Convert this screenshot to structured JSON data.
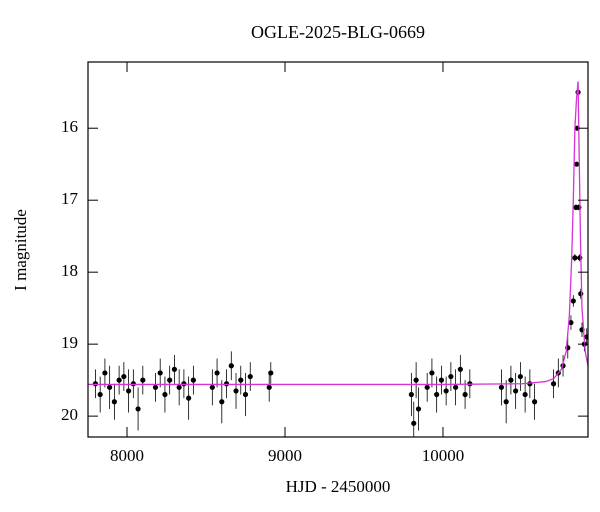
{
  "chart_data": {
    "type": "scatter",
    "title": "OGLE-2025-BLG-0669",
    "x_label": "HJD - 2450000",
    "y_label": "I magnitude",
    "xlim": [
      7753,
      10918
    ],
    "ylim": [
      20.29,
      15.08
    ],
    "xticks": [
      8000,
      9000,
      10000
    ],
    "yticks": [
      16,
      17,
      18,
      19,
      20
    ],
    "points": {
      "color": "#000000",
      "x": [
        7800,
        7830,
        7860,
        7890,
        7920,
        7950,
        7980,
        8010,
        8040,
        8070,
        8100,
        8180,
        8210,
        8240,
        8270,
        8300,
        8330,
        8360,
        8390,
        8420,
        8540,
        8570,
        8600,
        8630,
        8660,
        8690,
        8720,
        8750,
        8780,
        8900,
        8910,
        9800,
        9815,
        9830,
        9845,
        9900,
        9930,
        9960,
        9990,
        10020,
        10050,
        10080,
        10110,
        10140,
        10170,
        10370,
        10400,
        10430,
        10460,
        10490,
        10520,
        10550,
        10580,
        10700,
        10730,
        10760,
        10790,
        10810,
        10825,
        10835,
        10842,
        10846,
        10850,
        10855,
        10860,
        10866,
        10872,
        10880,
        10895,
        10910
      ],
      "values": [
        19.55,
        19.7,
        19.4,
        19.6,
        19.8,
        19.5,
        19.45,
        19.65,
        19.55,
        19.9,
        19.5,
        19.6,
        19.4,
        19.7,
        19.5,
        19.35,
        19.6,
        19.55,
        19.75,
        19.5,
        19.6,
        19.4,
        19.8,
        19.55,
        19.3,
        19.65,
        19.5,
        19.7,
        19.45,
        19.6,
        19.4,
        19.7,
        20.1,
        19.5,
        19.9,
        19.6,
        19.4,
        19.7,
        19.5,
        19.65,
        19.45,
        19.6,
        19.35,
        19.7,
        19.55,
        19.6,
        19.8,
        19.5,
        19.65,
        19.45,
        19.7,
        19.55,
        19.8,
        19.55,
        19.4,
        19.3,
        19.05,
        18.7,
        18.4,
        17.8,
        17.1,
        16.5,
        16.0,
        15.5,
        17.1,
        17.8,
        18.3,
        18.8,
        19.0,
        18.9
      ],
      "errors": [
        0.2,
        0.25,
        0.2,
        0.3,
        0.25,
        0.2,
        0.2,
        0.3,
        0.2,
        0.3,
        0.2,
        0.2,
        0.2,
        0.25,
        0.2,
        0.2,
        0.25,
        0.2,
        0.3,
        0.2,
        0.25,
        0.2,
        0.3,
        0.2,
        0.2,
        0.25,
        0.2,
        0.3,
        0.2,
        0.2,
        0.15,
        0.3,
        0.3,
        0.25,
        0.3,
        0.2,
        0.2,
        0.25,
        0.2,
        0.2,
        0.2,
        0.25,
        0.2,
        0.2,
        0.2,
        0.25,
        0.3,
        0.2,
        0.25,
        0.2,
        0.25,
        0.2,
        0.25,
        0.2,
        0.2,
        0.15,
        0.15,
        0.1,
        0.08,
        0.05,
        0.04,
        0.03,
        0.03,
        0.02,
        0.04,
        0.05,
        0.07,
        0.1,
        0.1,
        0.12
      ]
    },
    "model": {
      "color": "#d633d6",
      "x": [
        7753,
        10000,
        10500,
        10650,
        10700,
        10750,
        10780,
        10800,
        10815,
        10825,
        10835,
        10845,
        10855,
        10870,
        10880,
        10900,
        10918
      ],
      "values": [
        19.56,
        19.56,
        19.55,
        19.52,
        19.48,
        19.35,
        19.1,
        18.6,
        17.8,
        17.0,
        16.0,
        15.6,
        15.35,
        17.5,
        18.5,
        19.1,
        19.3
      ]
    }
  }
}
